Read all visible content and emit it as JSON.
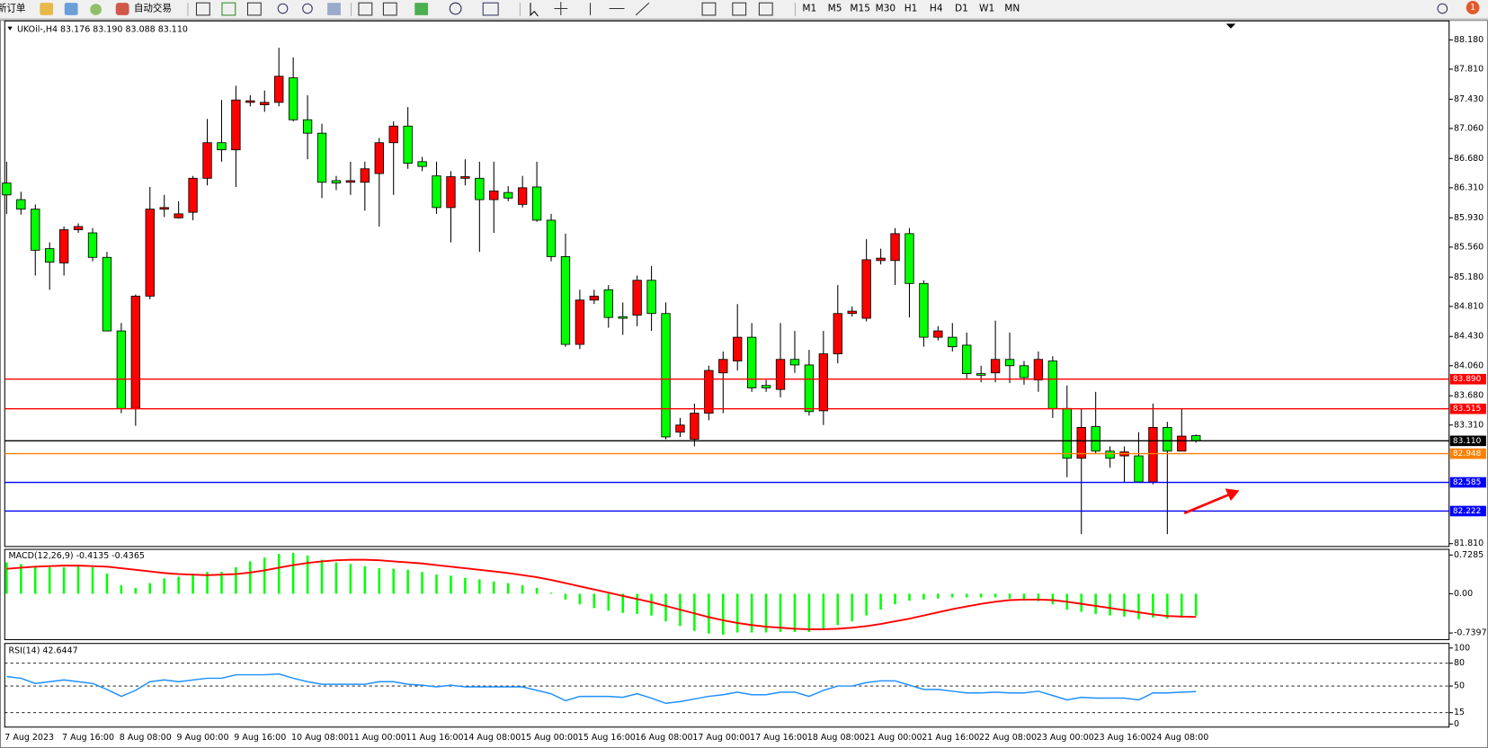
{
  "toolbar": {
    "new_order": "新订单",
    "auto_trading": "自动交易",
    "timeframes": [
      "M1",
      "M5",
      "M15",
      "M30",
      "H1",
      "H4",
      "D1",
      "W1",
      "MN"
    ],
    "notifications": 1
  },
  "chart_data": [
    {
      "type": "candlestick",
      "title": "UKOil-,H4  83.176 83.190 83.088 83.110",
      "categories": [
        "7 Aug 2023",
        null,
        null,
        null,
        "7 Aug 16:00",
        null,
        null,
        null,
        "8 Aug 08:00",
        null,
        null,
        null,
        "9 Aug 00:00",
        null,
        null,
        null,
        "9 Aug 16:00",
        null,
        null,
        null,
        "10 Aug 08:00",
        null,
        null,
        null,
        "11 Aug 00:00",
        null,
        null,
        null,
        "11 Aug 16:00",
        null,
        null,
        null,
        "14 Aug 08:00",
        null,
        null,
        null,
        "15 Aug 00:00",
        null,
        null,
        null,
        "15 Aug 16:00",
        null,
        null,
        null,
        "16 Aug 08:00",
        null,
        null,
        null,
        "17 Aug 00:00",
        null,
        null,
        null,
        "17 Aug 16:00",
        null,
        null,
        null,
        "18 Aug 08:00",
        null,
        null,
        null,
        "21 Aug 00:00",
        null,
        null,
        null,
        "21 Aug 16:00",
        null,
        null,
        null,
        "22 Aug 08:00",
        null,
        null,
        null,
        "23 Aug 00:00",
        null,
        null,
        null,
        "23 Aug 16:00",
        null,
        null,
        null,
        "24 Aug 08:00",
        null,
        null,
        null
      ],
      "open": [
        86.37,
        86.16,
        86.04,
        85.54,
        85.36,
        85.78,
        85.74,
        85.43,
        84.5,
        83.52,
        84.94,
        86.04,
        85.93,
        86.0,
        86.43,
        86.88,
        86.79,
        87.39,
        87.36,
        87.39,
        87.7,
        87.17,
        87.0,
        86.4,
        86.38,
        86.38,
        86.49,
        86.88,
        87.09,
        86.64,
        86.46,
        86.06,
        86.43,
        86.43,
        86.16,
        86.25,
        86.1,
        86.32,
        85.9,
        85.44,
        84.33,
        84.89,
        85.02,
        84.68,
        84.7,
        85.14,
        84.72,
        83.22,
        83.13,
        83.46,
        83.97,
        84.12,
        84.42,
        83.81,
        83.76,
        84.14,
        84.07,
        83.49,
        84.21,
        84.72,
        84.66,
        85.39,
        85.39,
        85.73,
        85.1,
        84.42,
        84.42,
        84.32,
        83.96,
        83.97,
        84.14,
        84.06,
        83.88,
        84.12,
        83.52,
        82.89,
        83.29,
        82.98,
        82.92,
        82.92,
        82.59,
        83.28,
        82.98,
        83.176
      ],
      "high": [
        86.64,
        86.26,
        86.1,
        85.62,
        85.82,
        85.86,
        85.8,
        85.5,
        84.6,
        84.96,
        86.32,
        86.22,
        86.14,
        86.46,
        87.18,
        87.42,
        87.6,
        87.48,
        87.54,
        88.08,
        87.96,
        87.48,
        87.12,
        86.46,
        86.64,
        86.64,
        86.94,
        87.15,
        87.33,
        86.7,
        86.64,
        86.52,
        86.67,
        86.64,
        86.64,
        86.33,
        86.46,
        86.64,
        85.98,
        85.73,
        85.02,
        85.02,
        85.08,
        84.86,
        85.2,
        85.32,
        84.86,
        83.4,
        83.58,
        84.06,
        84.24,
        84.84,
        84.6,
        83.88,
        84.6,
        84.5,
        84.26,
        84.5,
        85.08,
        84.81,
        85.66,
        85.54,
        85.8,
        85.8,
        85.14,
        84.56,
        84.6,
        84.48,
        84.06,
        84.63,
        84.48,
        84.12,
        84.24,
        84.18,
        83.81,
        83.52,
        83.73,
        83.04,
        83.04,
        83.22,
        83.58,
        83.35,
        83.52,
        83.19
      ],
      "low": [
        85.98,
        85.97,
        85.2,
        85.02,
        85.2,
        85.74,
        85.38,
        84.5,
        83.46,
        83.3,
        84.9,
        85.94,
        85.92,
        85.9,
        86.34,
        86.64,
        86.32,
        87.34,
        87.27,
        87.34,
        87.15,
        86.67,
        86.18,
        86.28,
        86.22,
        86.02,
        85.82,
        86.22,
        86.55,
        86.52,
        85.98,
        85.62,
        86.34,
        85.5,
        85.74,
        86.14,
        86.06,
        85.88,
        85.38,
        84.3,
        84.27,
        84.84,
        84.54,
        84.45,
        84.56,
        84.5,
        83.13,
        83.16,
        83.04,
        83.37,
        83.46,
        84.0,
        83.73,
        83.73,
        83.66,
        83.97,
        83.43,
        83.31,
        84.09,
        84.68,
        84.62,
        85.34,
        85.08,
        84.67,
        84.3,
        84.38,
        84.24,
        83.9,
        83.85,
        83.85,
        83.84,
        83.82,
        83.73,
        83.4,
        82.65,
        81.93,
        82.94,
        82.77,
        82.59,
        82.58,
        82.56,
        81.93,
        82.98,
        83.088
      ],
      "close": [
        86.22,
        86.04,
        85.52,
        85.37,
        85.78,
        85.82,
        85.43,
        84.5,
        83.52,
        84.94,
        86.04,
        86.06,
        85.98,
        86.43,
        86.88,
        86.79,
        87.42,
        87.41,
        87.39,
        87.72,
        87.17,
        87.0,
        86.38,
        86.37,
        86.4,
        86.55,
        86.88,
        87.09,
        86.62,
        86.58,
        86.06,
        86.45,
        86.45,
        86.16,
        86.27,
        86.18,
        86.31,
        85.9,
        85.44,
        84.33,
        84.89,
        84.94,
        84.67,
        84.66,
        85.14,
        84.72,
        83.16,
        83.31,
        83.46,
        84.0,
        84.14,
        84.42,
        83.78,
        83.78,
        84.14,
        84.07,
        83.48,
        84.21,
        84.72,
        84.75,
        85.4,
        85.42,
        85.73,
        85.1,
        84.42,
        84.5,
        84.3,
        83.96,
        83.94,
        84.14,
        84.06,
        83.91,
        84.14,
        83.52,
        82.89,
        83.28,
        82.98,
        82.89,
        82.97,
        82.59,
        83.28,
        82.98,
        83.17,
        83.11
      ],
      "up_color": "#ff0000",
      "down_color": "#00ff00",
      "wick_color": "#000000",
      "ylim": [
        81.774,
        88.42
      ],
      "yticks": [
        {
          "value": 88.18,
          "label": "88.180"
        },
        {
          "value": 87.81,
          "label": "87.810"
        },
        {
          "value": 87.43,
          "label": "87.430"
        },
        {
          "value": 87.06,
          "label": "87.060"
        },
        {
          "value": 86.68,
          "label": "86.680"
        },
        {
          "value": 86.31,
          "label": "86.310"
        },
        {
          "value": 85.93,
          "label": "85.930"
        },
        {
          "value": 85.56,
          "label": "85.560"
        },
        {
          "value": 85.18,
          "label": "85.180"
        },
        {
          "value": 84.81,
          "label": "84.810"
        },
        {
          "value": 84.43,
          "label": "84.430"
        },
        {
          "value": 84.06,
          "label": "84.060"
        },
        {
          "value": 83.68,
          "label": "83.680"
        },
        {
          "value": 83.31,
          "label": "83.310"
        },
        {
          "value": 81.81,
          "label": "81.810"
        }
      ],
      "hlines": [
        {
          "value": 83.89,
          "label": "83.890",
          "color": "#ff0000"
        },
        {
          "value": 83.515,
          "label": "83.515",
          "color": "#ff0000"
        },
        {
          "value": 83.11,
          "label": "83.110",
          "color": "#000000"
        },
        {
          "value": 82.948,
          "label": "82.948",
          "color": "#ff8000"
        },
        {
          "value": 82.585,
          "label": "82.585",
          "color": "#0000ff"
        },
        {
          "value": 82.222,
          "label": "82.222",
          "color": "#0000ff"
        }
      ]
    },
    {
      "type": "macd",
      "title": "MACD(12,26,9) -0.4135 -0.4365",
      "histogram": {
        "color": "#00ff00",
        "values": [
          0.59,
          0.56,
          0.52,
          0.5,
          0.5,
          0.52,
          0.5,
          0.38,
          0.16,
          0.11,
          0.2,
          0.29,
          0.32,
          0.38,
          0.41,
          0.41,
          0.5,
          0.61,
          0.68,
          0.75,
          0.77,
          0.72,
          0.64,
          0.59,
          0.56,
          0.52,
          0.48,
          0.47,
          0.45,
          0.41,
          0.36,
          0.34,
          0.3,
          0.27,
          0.23,
          0.2,
          0.16,
          0.11,
          0.02,
          -0.11,
          -0.2,
          -0.27,
          -0.32,
          -0.36,
          -0.38,
          -0.41,
          -0.52,
          -0.61,
          -0.7,
          -0.75,
          -0.77,
          -0.73,
          -0.73,
          -0.73,
          -0.72,
          -0.72,
          -0.72,
          -0.68,
          -0.59,
          -0.52,
          -0.41,
          -0.3,
          -0.2,
          -0.13,
          -0.11,
          -0.09,
          -0.07,
          -0.07,
          -0.07,
          -0.07,
          -0.09,
          -0.13,
          -0.14,
          -0.2,
          -0.3,
          -0.34,
          -0.38,
          -0.41,
          -0.43,
          -0.48,
          -0.45,
          -0.47,
          -0.45,
          -0.4135
        ]
      },
      "signal": {
        "color": "#ff0000",
        "values": [
          0.47,
          0.49,
          0.51,
          0.52,
          0.53,
          0.53,
          0.52,
          0.51,
          0.48,
          0.45,
          0.42,
          0.39,
          0.37,
          0.36,
          0.35,
          0.36,
          0.37,
          0.4,
          0.44,
          0.49,
          0.54,
          0.58,
          0.61,
          0.63,
          0.64,
          0.64,
          0.63,
          0.61,
          0.59,
          0.57,
          0.54,
          0.51,
          0.48,
          0.45,
          0.42,
          0.39,
          0.35,
          0.31,
          0.26,
          0.2,
          0.14,
          0.08,
          0.02,
          -0.04,
          -0.1,
          -0.16,
          -0.23,
          -0.3,
          -0.37,
          -0.44,
          -0.5,
          -0.55,
          -0.59,
          -0.62,
          -0.64,
          -0.66,
          -0.67,
          -0.67,
          -0.66,
          -0.64,
          -0.61,
          -0.57,
          -0.52,
          -0.47,
          -0.41,
          -0.35,
          -0.29,
          -0.24,
          -0.19,
          -0.15,
          -0.12,
          -0.11,
          -0.11,
          -0.12,
          -0.15,
          -0.19,
          -0.23,
          -0.27,
          -0.31,
          -0.35,
          -0.39,
          -0.42,
          -0.43,
          -0.4365
        ]
      },
      "ylim": [
        -0.865,
        0.836
      ],
      "yticks": [
        {
          "value": 0.7285,
          "label": "0.7285"
        },
        {
          "value": 0,
          "label": "0.00"
        },
        {
          "value": -0.7397,
          "label": "-0.7397"
        }
      ]
    },
    {
      "type": "rsi",
      "title": "RSI(14) 42.6447",
      "color": "#1e90ff",
      "values": [
        62.5,
        60.2,
        53.4,
        55.7,
        58.0,
        55.7,
        53.4,
        45.5,
        36.4,
        44.3,
        55.7,
        58.0,
        55.7,
        58.0,
        60.2,
        60.2,
        64.8,
        64.8,
        64.8,
        65.9,
        60.2,
        55.7,
        52.3,
        52.3,
        52.3,
        52.3,
        55.7,
        55.7,
        52.3,
        51.1,
        48.9,
        51.1,
        48.9,
        48.9,
        48.9,
        48.9,
        48.9,
        44.3,
        39.8,
        30.7,
        36.4,
        36.4,
        36.4,
        35.2,
        39.8,
        34.1,
        27.3,
        29.5,
        33.0,
        36.4,
        38.6,
        42.0,
        38.6,
        38.6,
        42.0,
        42.0,
        36.4,
        44.3,
        50.0,
        50.0,
        54.5,
        56.8,
        56.8,
        51.1,
        45.5,
        45.5,
        43.2,
        40.9,
        40.9,
        42.0,
        40.9,
        40.9,
        43.2,
        37.5,
        31.8,
        35.2,
        34.1,
        34.1,
        34.1,
        31.8,
        40.9,
        40.9,
        42.0,
        42.6447
      ],
      "ylim": [
        -4,
        106
      ],
      "yticks": [
        100,
        80,
        50,
        15,
        0
      ],
      "levels": [
        80,
        50,
        15
      ]
    }
  ]
}
